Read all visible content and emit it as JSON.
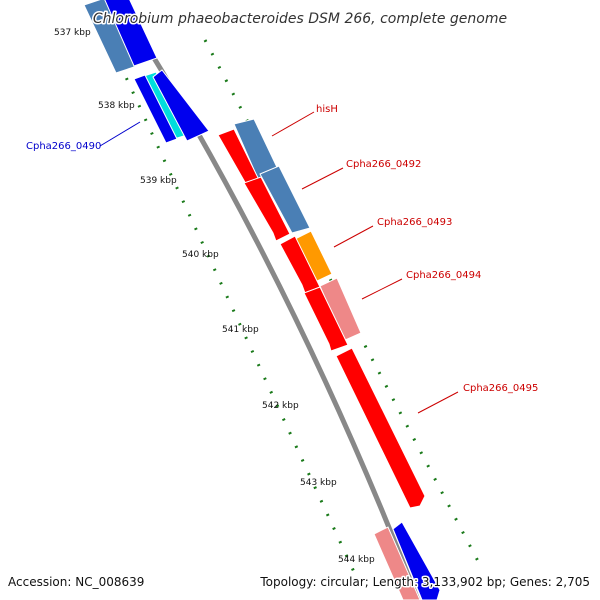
{
  "title": "Chlorobium phaeobacteroides DSM 266, complete genome",
  "footer": {
    "accession": "Accession: NC_008639",
    "topology": "Topology: circular; Length: 3,133,902 bp; Genes: 2,705"
  },
  "scale": {
    "ticks": [
      "537 kbp",
      "538 kbp",
      "539 kbp",
      "540 kbp",
      "541 kbp",
      "542 kbp",
      "543 kbp",
      "544 kbp"
    ]
  },
  "gene_labels": [
    {
      "text": "Cpha266_0490",
      "color": "#0000cc"
    },
    {
      "text": "hisH",
      "color": "#cc0000"
    },
    {
      "text": "Cpha266_0492",
      "color": "#cc0000"
    },
    {
      "text": "Cpha266_0493",
      "color": "#cc0000"
    },
    {
      "text": "Cpha266_0494",
      "color": "#cc0000"
    },
    {
      "text": "Cpha266_0495",
      "color": "#cc0000"
    }
  ],
  "colors": {
    "forward_cds": "#ff0000",
    "reverse_cds": "#0000ee",
    "forward_light": "#ee8888",
    "steel": "#4a7fb5",
    "cyan": "#00dddd",
    "orange": "#ff9900",
    "backbone": "#888888",
    "tick_green": "#1a7a1a"
  }
}
